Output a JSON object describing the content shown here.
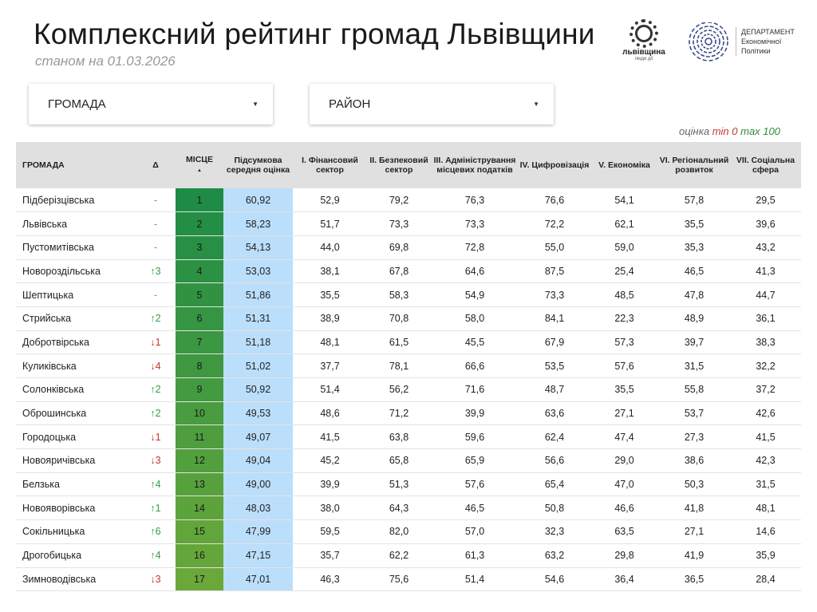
{
  "header": {
    "title": "Комплексний рейтинг громад Львівщини",
    "subtitle": "станом на 01.03.2026",
    "logo1": {
      "name": "львівщина",
      "tagline": "люди дії"
    },
    "logo2": {
      "line1": "ДЕПАРТАМЕНТ",
      "line2": "Економічної",
      "line3": "Політики"
    }
  },
  "filters": {
    "hromada": "ГРОМАДА",
    "raion": "РАЙОН"
  },
  "legend": {
    "label": "оцінка",
    "min": "min 0",
    "max": "max 100"
  },
  "colors": {
    "place_top": "#1e8c45",
    "place_bottom": "#6aa83a",
    "score_bg": "#bbdefb",
    "up": "#3a9a4a",
    "down": "#c0392b"
  },
  "table": {
    "headers": [
      "ГРОМАДА",
      "Δ",
      "МІСЦЕ",
      "Підсумкова середня оцінка",
      "I. Фінансовий сектор",
      "II. Безпековий сектор",
      "III. Адміністрування місцевих податків",
      "IV. Цифровізація",
      "V. Економіка",
      "VI. Регіональний розвиток",
      "VII. Соціальна сфера"
    ],
    "sort_indicator": "▲",
    "rows": [
      [
        "Підберізцівська",
        "-",
        "1",
        "60,92",
        "52,9",
        "79,2",
        "76,3",
        "76,6",
        "54,1",
        "57,8",
        "29,5"
      ],
      [
        "Львівська",
        "-",
        "2",
        "58,23",
        "51,7",
        "73,3",
        "73,3",
        "72,2",
        "62,1",
        "35,5",
        "39,6"
      ],
      [
        "Пустомитівська",
        "-",
        "3",
        "54,13",
        "44,0",
        "69,8",
        "72,8",
        "55,0",
        "59,0",
        "35,3",
        "43,2"
      ],
      [
        "Новороздільська",
        "↑3",
        "4",
        "53,03",
        "38,1",
        "67,8",
        "64,6",
        "87,5",
        "25,4",
        "46,5",
        "41,3"
      ],
      [
        "Шептицька",
        "-",
        "5",
        "51,86",
        "35,5",
        "58,3",
        "54,9",
        "73,3",
        "48,5",
        "47,8",
        "44,7"
      ],
      [
        "Стрийська",
        "↑2",
        "6",
        "51,31",
        "38,9",
        "70,8",
        "58,0",
        "84,1",
        "22,3",
        "48,9",
        "36,1"
      ],
      [
        "Добротвірська",
        "↓1",
        "7",
        "51,18",
        "48,1",
        "61,5",
        "45,5",
        "67,9",
        "57,3",
        "39,7",
        "38,3"
      ],
      [
        "Куликівська",
        "↓4",
        "8",
        "51,02",
        "37,7",
        "78,1",
        "66,6",
        "53,5",
        "57,6",
        "31,5",
        "32,2"
      ],
      [
        "Солонківська",
        "↑2",
        "9",
        "50,92",
        "51,4",
        "56,2",
        "71,6",
        "48,7",
        "35,5",
        "55,8",
        "37,2"
      ],
      [
        "Оброшинська",
        "↑2",
        "10",
        "49,53",
        "48,6",
        "71,2",
        "39,9",
        "63,6",
        "27,1",
        "53,7",
        "42,6"
      ],
      [
        "Городоцька",
        "↓1",
        "11",
        "49,07",
        "41,5",
        "63,8",
        "59,6",
        "62,4",
        "47,4",
        "27,3",
        "41,5"
      ],
      [
        "Новояричівська",
        "↓3",
        "12",
        "49,04",
        "45,2",
        "65,8",
        "65,9",
        "56,6",
        "29,0",
        "38,6",
        "42,3"
      ],
      [
        "Белзька",
        "↑4",
        "13",
        "49,00",
        "39,9",
        "51,3",
        "57,6",
        "65,4",
        "47,0",
        "50,3",
        "31,5"
      ],
      [
        "Новояворівська",
        "↑1",
        "14",
        "48,03",
        "38,0",
        "64,3",
        "46,5",
        "50,8",
        "46,6",
        "41,8",
        "48,1"
      ],
      [
        "Сокільницька",
        "↑6",
        "15",
        "47,99",
        "59,5",
        "82,0",
        "57,0",
        "32,3",
        "63,5",
        "27,1",
        "14,6"
      ],
      [
        "Дрогобицька",
        "↑4",
        "16",
        "47,15",
        "35,7",
        "62,2",
        "61,3",
        "63,2",
        "29,8",
        "41,9",
        "35,9"
      ],
      [
        "Зимноводівська",
        "↓3",
        "17",
        "47,01",
        "46,3",
        "75,6",
        "51,4",
        "54,6",
        "36,4",
        "36,5",
        "28,4"
      ]
    ]
  }
}
